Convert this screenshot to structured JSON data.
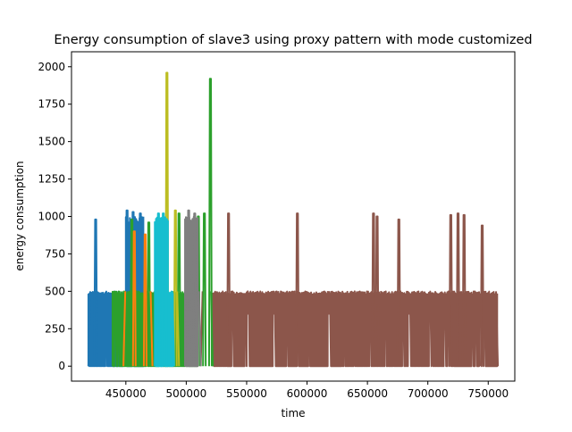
{
  "chart_data": {
    "type": "line",
    "title": "Energy consumption of slave3 using proxy pattern with mode customized",
    "xlabel": "time",
    "ylabel": "energy consumption",
    "xlim": [
      405000,
      772000
    ],
    "ylim": [
      -100,
      2100
    ],
    "xticks": [
      450000,
      500000,
      550000,
      600000,
      650000,
      700000,
      750000
    ],
    "yticks": [
      0,
      250,
      500,
      750,
      1000,
      1250,
      1500,
      1750,
      2000
    ],
    "grid": false,
    "legend": "none",
    "series": [
      {
        "color": "#1f77b4",
        "x_range": [
          419000,
          465000
        ],
        "base": 500,
        "dense": [
          [
            419000,
            448000,
            500
          ],
          [
            450000,
            465000,
            1000
          ]
        ],
        "peaks": [
          [
            425000,
            980
          ],
          [
            451000,
            1040
          ],
          [
            456000,
            1030
          ],
          [
            462000,
            1020
          ]
        ]
      },
      {
        "color": "#8c564b",
        "x_range": [
          512000,
          758000
        ],
        "base": 500,
        "dense": [
          [
            522000,
            758000,
            500
          ]
        ],
        "peaks": [
          [
            535000,
            1020
          ],
          [
            592000,
            1020
          ],
          [
            655000,
            1020
          ],
          [
            658000,
            1000
          ],
          [
            676000,
            980
          ],
          [
            719000,
            1010
          ],
          [
            725000,
            1020
          ],
          [
            730000,
            1010
          ],
          [
            745000,
            940
          ]
        ]
      },
      {
        "color": "#2ca02c",
        "x_range": [
          439000,
          522000
        ],
        "base": 500,
        "dense": [
          [
            439000,
            510000,
            500
          ]
        ],
        "peaks": [
          [
            455000,
            980
          ],
          [
            469000,
            960
          ],
          [
            494000,
            1020
          ],
          [
            510000,
            1000
          ],
          [
            515000,
            1020
          ],
          [
            520000,
            1920
          ]
        ]
      },
      {
        "color": "#bcbd22",
        "x_range": [
          483000,
          494000
        ],
        "base": 500,
        "dense": [],
        "peaks": [
          [
            484000,
            1960
          ],
          [
            491000,
            1040
          ]
        ]
      },
      {
        "color": "#17becf",
        "x_range": [
          474000,
          490000
        ],
        "base": 500,
        "dense": [
          [
            474000,
            485000,
            1000
          ],
          [
            485000,
            489000,
            500
          ]
        ],
        "peaks": [
          [
            477000,
            1020
          ],
          [
            481000,
            1020
          ]
        ]
      },
      {
        "color": "#7f7f7f",
        "x_range": [
          499000,
          512000
        ],
        "base": 500,
        "dense": [
          [
            499000,
            510000,
            1000
          ]
        ],
        "peaks": [
          [
            502000,
            1040
          ],
          [
            507000,
            1020
          ]
        ]
      },
      {
        "color": "#ff7f0e",
        "x_range": [
          448000,
          472000
        ],
        "base": 500,
        "dense": [],
        "peaks": [
          [
            457000,
            900
          ],
          [
            466000,
            880
          ]
        ]
      }
    ]
  }
}
